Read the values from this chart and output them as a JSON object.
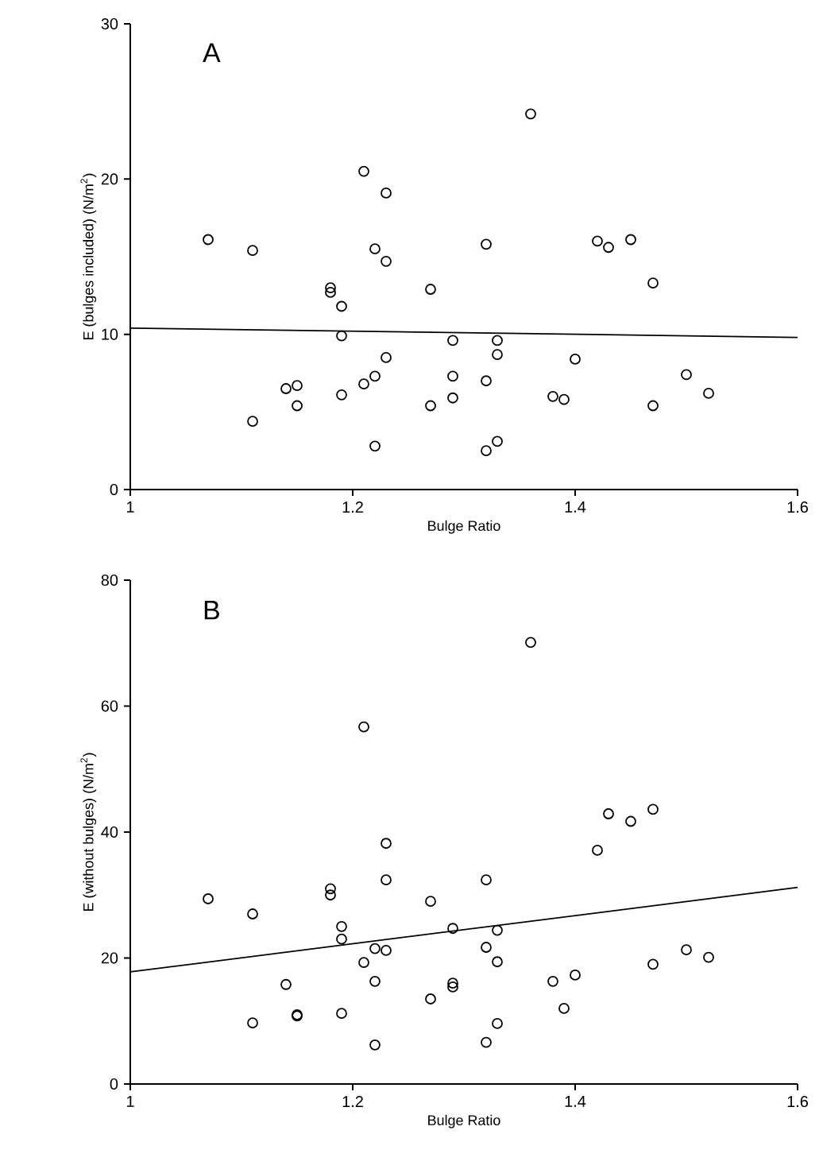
{
  "chart_data": [
    {
      "type": "scatter",
      "title": "A",
      "xlabel": "Bulge Ratio",
      "ylabel": "E (bulges included)  (N/m$^{2}$)",
      "xlim": [
        1,
        1.6
      ],
      "ylim": [
        0,
        30
      ],
      "xticks": [
        1,
        1.2,
        1.4,
        1.6
      ],
      "yticks": [
        0,
        10,
        20,
        30
      ],
      "series": [
        {
          "color": "#000000",
          "marker": "circle",
          "x": [
            1.07,
            1.11,
            1.11,
            1.14,
            1.15,
            1.15,
            1.18,
            1.18,
            1.19,
            1.19,
            1.19,
            1.21,
            1.21,
            1.22,
            1.22,
            1.22,
            1.23,
            1.23,
            1.23,
            1.27,
            1.27,
            1.29,
            1.29,
            1.29,
            1.32,
            1.32,
            1.32,
            1.33,
            1.33,
            1.33,
            1.36,
            1.38,
            1.39,
            1.4,
            1.42,
            1.43,
            1.45,
            1.47,
            1.47,
            1.5,
            1.52
          ],
          "values": [
            16.1,
            15.4,
            4.4,
            6.5,
            6.7,
            5.4,
            13.0,
            12.7,
            11.8,
            9.9,
            6.1,
            20.5,
            6.8,
            15.5,
            7.3,
            2.8,
            19.1,
            14.7,
            8.5,
            12.9,
            5.4,
            9.6,
            7.3,
            5.9,
            15.8,
            7.0,
            2.5,
            9.6,
            8.7,
            3.1,
            24.2,
            6.0,
            5.8,
            8.4,
            16.0,
            15.6,
            16.1,
            13.3,
            5.4,
            7.4,
            6.2
          ]
        },
        {
          "type": "line",
          "color": "#000000",
          "marker": "none",
          "line_style": "solid",
          "x": [
            1,
            1.6
          ],
          "values": [
            10.4,
            9.8
          ]
        }
      ]
    },
    {
      "type": "scatter",
      "title": "B",
      "xlabel": "Bulge Ratio",
      "ylabel": "E (without bulges)  (N/m$^{2}$)",
      "xlim": [
        1,
        1.6
      ],
      "ylim": [
        0,
        80
      ],
      "xticks": [
        1,
        1.2,
        1.4,
        1.6
      ],
      "yticks": [
        0,
        20,
        40,
        60,
        80
      ],
      "series": [
        {
          "color": "#000000",
          "marker": "circle",
          "x": [
            1.07,
            1.11,
            1.11,
            1.14,
            1.15,
            1.15,
            1.18,
            1.18,
            1.19,
            1.19,
            1.19,
            1.21,
            1.21,
            1.22,
            1.22,
            1.22,
            1.23,
            1.23,
            1.23,
            1.27,
            1.27,
            1.29,
            1.29,
            1.29,
            1.32,
            1.32,
            1.32,
            1.33,
            1.33,
            1.33,
            1.36,
            1.38,
            1.39,
            1.4,
            1.42,
            1.43,
            1.45,
            1.47,
            1.47,
            1.5,
            1.52
          ],
          "values": [
            29.4,
            27.0,
            9.7,
            15.8,
            11.0,
            10.8,
            31.0,
            30.0,
            25.0,
            23.0,
            11.2,
            56.7,
            19.3,
            21.5,
            16.3,
            6.2,
            38.2,
            32.4,
            21.2,
            29.0,
            13.5,
            24.7,
            16.0,
            15.4,
            32.4,
            21.7,
            6.6,
            24.4,
            19.4,
            9.6,
            70.1,
            16.3,
            12.0,
            17.3,
            37.1,
            42.9,
            41.7,
            43.6,
            19.0,
            21.3,
            20.1
          ]
        },
        {
          "type": "line",
          "color": "#000000",
          "marker": "none",
          "line_style": "solid",
          "x": [
            1,
            1.6
          ],
          "values": [
            17.8,
            31.2
          ]
        }
      ]
    }
  ]
}
